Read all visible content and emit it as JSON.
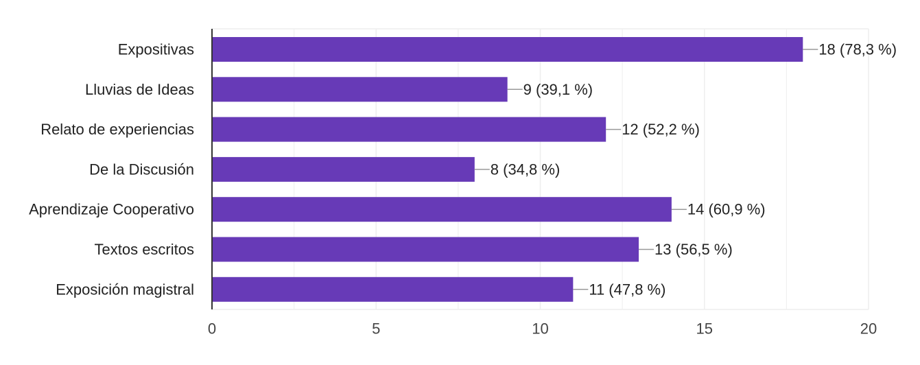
{
  "chart_data": {
    "type": "bar",
    "orientation": "horizontal",
    "categories": [
      "Expositivas",
      "Lluvias de Ideas",
      "Relato de experiencias",
      "De la Discusión",
      "Aprendizaje Cooperativo",
      "Textos escritos",
      "Exposición magistral"
    ],
    "values": [
      18,
      9,
      12,
      8,
      14,
      13,
      11
    ],
    "data_labels": [
      "18 (78,3 %)",
      "9 (39,1 %)",
      "12 (52,2 %)",
      "8 (34,8 %)",
      "14 (60,9 %)",
      "13 (56,5 %)",
      "11 (47,8 %)"
    ],
    "xlim": [
      0,
      20
    ],
    "xticks": [
      0,
      5,
      10,
      15,
      20
    ],
    "xtick_labels": [
      "0",
      "5",
      "10",
      "15",
      "20"
    ],
    "grid": true,
    "title": "",
    "xlabel": "",
    "ylabel": ""
  },
  "colors": {
    "bar": "#673ab7",
    "grid": "#eeeeee",
    "axis": "#333333",
    "leader": "#999999"
  }
}
